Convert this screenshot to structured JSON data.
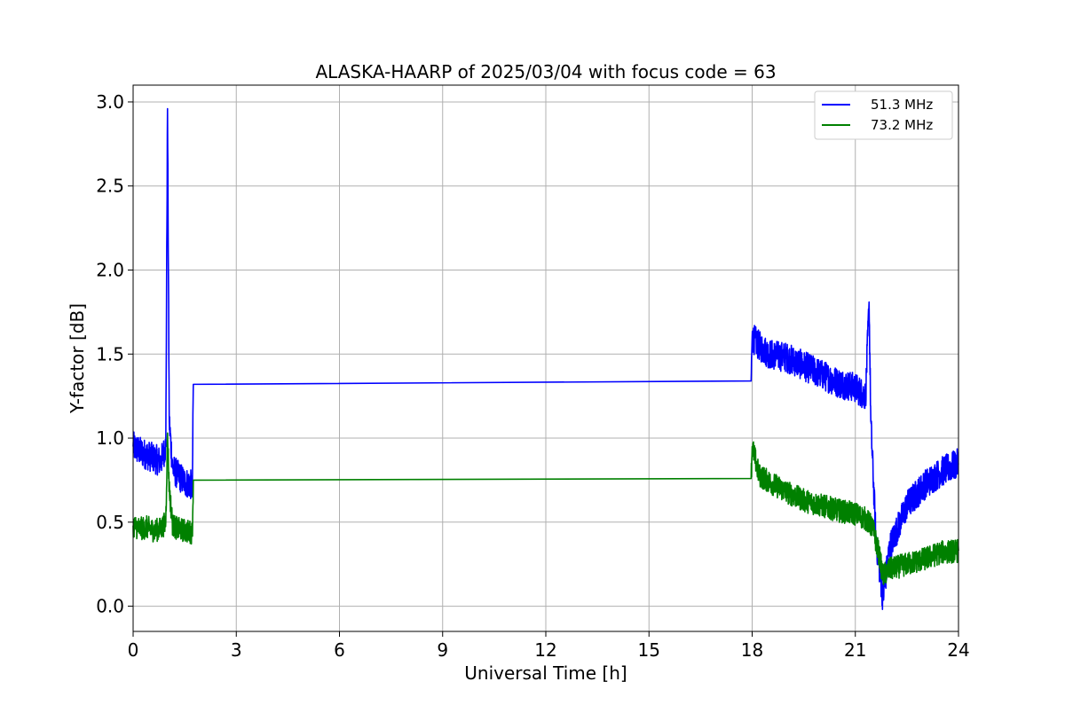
{
  "chart_data": {
    "type": "line",
    "title": "ALASKA-HAARP of 2025/03/04 with focus code = 63",
    "xlabel": "Universal Time [h]",
    "ylabel": "Y-factor [dB]",
    "xlim": [
      0,
      24
    ],
    "ylim": [
      -0.15,
      3.1
    ],
    "xticks": [
      0,
      3,
      6,
      9,
      12,
      15,
      18,
      21,
      24
    ],
    "xtick_labels": [
      "0",
      "3",
      "6",
      "9",
      "12",
      "15",
      "18",
      "21",
      "24"
    ],
    "yticks": [
      0.0,
      0.5,
      1.0,
      1.5,
      2.0,
      2.5,
      3.0
    ],
    "ytick_labels": [
      "0.0",
      "0.5",
      "1.0",
      "1.5",
      "2.0",
      "2.5",
      "3.0"
    ],
    "grid": true,
    "legend_position": "top-right",
    "series": [
      {
        "name": "51.3 MHz",
        "color": "#0000ff",
        "x": [
          0,
          0.2,
          0.4,
          0.6,
          0.8,
          0.95,
          1.0,
          1.05,
          1.15,
          1.3,
          1.5,
          1.7,
          1.72,
          1.75,
          17.97,
          18.0,
          18.2,
          18.5,
          19.0,
          19.5,
          20.0,
          20.5,
          21.0,
          21.3,
          21.4,
          21.45,
          21.6,
          21.8,
          22.0,
          22.5,
          23.0,
          23.5,
          24.0
        ],
        "y": [
          0.95,
          0.92,
          0.9,
          0.88,
          0.86,
          0.95,
          2.96,
          1.1,
          0.82,
          0.78,
          0.74,
          0.72,
          0.66,
          1.32,
          1.34,
          1.6,
          1.55,
          1.5,
          1.48,
          1.43,
          1.38,
          1.33,
          1.3,
          1.25,
          1.81,
          1.1,
          0.4,
          0.05,
          0.35,
          0.6,
          0.72,
          0.8,
          0.85
        ]
      },
      {
        "name": "73.2 MHz",
        "color": "#008000",
        "x": [
          0,
          0.2,
          0.4,
          0.6,
          0.8,
          0.95,
          1.0,
          1.05,
          1.15,
          1.3,
          1.5,
          1.7,
          1.72,
          1.75,
          17.97,
          18.0,
          18.2,
          18.5,
          19.0,
          19.5,
          20.0,
          20.5,
          21.0,
          21.3,
          21.5,
          21.7,
          21.8,
          22.0,
          22.5,
          23.0,
          23.5,
          24.0
        ],
        "y": [
          0.48,
          0.46,
          0.47,
          0.45,
          0.46,
          0.5,
          1.03,
          0.7,
          0.48,
          0.46,
          0.45,
          0.44,
          0.42,
          0.75,
          0.76,
          0.95,
          0.78,
          0.74,
          0.68,
          0.63,
          0.6,
          0.57,
          0.55,
          0.52,
          0.47,
          0.3,
          0.18,
          0.22,
          0.25,
          0.28,
          0.32,
          0.33
        ]
      }
    ]
  }
}
